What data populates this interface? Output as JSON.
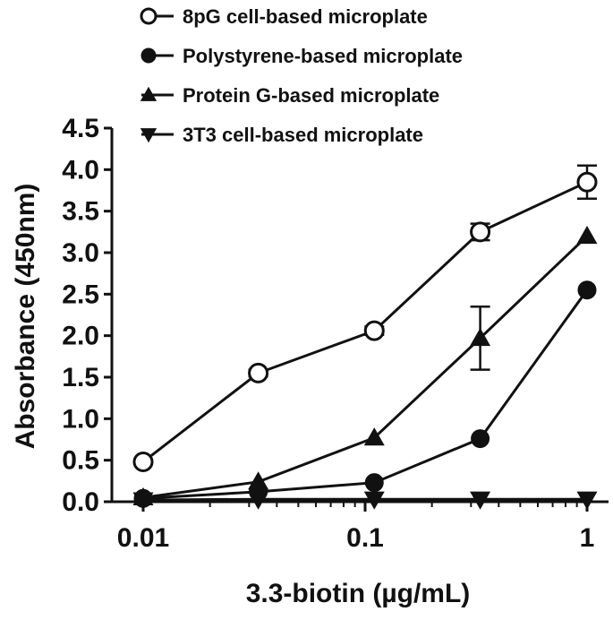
{
  "chart_data": {
    "type": "line",
    "title": "",
    "xlabel": "3.3-biotin (µg/mL)",
    "ylabel": "Absorbance (450nm)",
    "xscale": "log",
    "xlim": [
      0.01,
      1.2
    ],
    "ylim": [
      0,
      4.5
    ],
    "xticks": [
      0.01,
      0.1,
      1
    ],
    "xtick_labels": [
      "0.01",
      "0.1",
      "1"
    ],
    "yticks": [
      0.0,
      0.5,
      1.0,
      1.5,
      2.0,
      2.5,
      3.0,
      3.5,
      4.0,
      4.5
    ],
    "ytick_labels": [
      "0.0",
      "0.5",
      "1.0",
      "1.5",
      "2.0",
      "2.5",
      "3.0",
      "3.5",
      "4.0",
      "4.5"
    ],
    "grid": false,
    "legend_position": "top",
    "x": [
      0.01,
      0.033,
      0.11,
      0.33,
      1
    ],
    "series": [
      {
        "name": "8pG cell-based microplate",
        "marker": "circle-open",
        "values": [
          0.48,
          1.55,
          2.06,
          3.25,
          3.85
        ],
        "errors": [
          0.03,
          0.04,
          0.05,
          0.1,
          0.2
        ]
      },
      {
        "name": "Polystyrene-based microplate",
        "marker": "circle-filled",
        "values": [
          0.04,
          0.12,
          0.23,
          0.76,
          2.55
        ],
        "errors": [
          0,
          0,
          0,
          0,
          0
        ]
      },
      {
        "name": "Protein G-based microplate",
        "marker": "triangle-up",
        "values": [
          0.05,
          0.24,
          0.77,
          1.97,
          3.2
        ],
        "errors": [
          0,
          0,
          0,
          0.38,
          0
        ]
      },
      {
        "name": "3T3 cell-based microplate",
        "marker": "triangle-down",
        "values": [
          0.02,
          0.03,
          0.03,
          0.03,
          0.03
        ],
        "errors": [
          0,
          0,
          0,
          0,
          0
        ]
      }
    ]
  }
}
